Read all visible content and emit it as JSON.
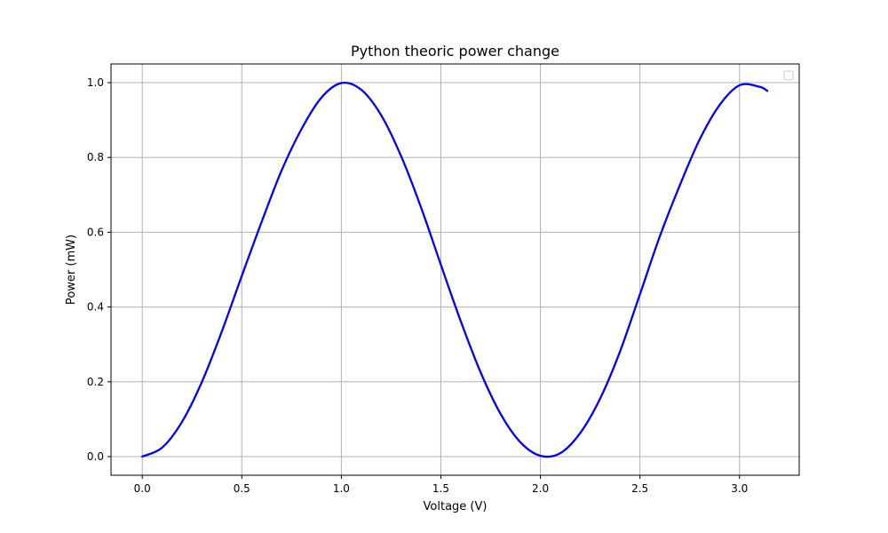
{
  "chart_data": {
    "type": "line",
    "title": "Python theoric power change",
    "xlabel": "Voltage (V)",
    "ylabel": "Power (mW)",
    "xlim": [
      -0.157,
      3.3
    ],
    "ylim": [
      -0.05,
      1.05
    ],
    "xticks": [
      0.0,
      0.5,
      1.0,
      1.5,
      2.0,
      2.5,
      3.0
    ],
    "yticks": [
      0.0,
      0.2,
      0.4,
      0.6,
      0.8,
      1.0
    ],
    "xtick_labels": [
      "0.0",
      "0.5",
      "1.0",
      "1.5",
      "2.0",
      "2.5",
      "3.0"
    ],
    "ytick_labels": [
      "0.0",
      "0.2",
      "0.4",
      "0.6",
      "0.8",
      "1.0"
    ],
    "grid": true,
    "legend": {
      "placement": "top-right",
      "entries": []
    },
    "series": [
      {
        "color": "#0000ff",
        "x": [
          0.0,
          0.1,
          0.2,
          0.3,
          0.4,
          0.5,
          0.6,
          0.7,
          0.8,
          0.9,
          1.0,
          1.1,
          1.2,
          1.3,
          1.4,
          1.5,
          1.6,
          1.7,
          1.8,
          1.9,
          2.0,
          2.1,
          2.2,
          2.3,
          2.4,
          2.5,
          2.6,
          2.7,
          2.8,
          2.9,
          3.0,
          3.1,
          3.14
        ],
        "y": [
          0.0,
          0.024,
          0.093,
          0.2,
          0.335,
          0.483,
          0.628,
          0.765,
          0.876,
          0.96,
          0.999,
          0.981,
          0.913,
          0.804,
          0.667,
          0.513,
          0.362,
          0.225,
          0.114,
          0.038,
          0.002,
          0.009,
          0.063,
          0.155,
          0.281,
          0.434,
          0.589,
          0.725,
          0.848,
          0.94,
          0.993,
          0.989,
          0.978
        ]
      }
    ]
  }
}
